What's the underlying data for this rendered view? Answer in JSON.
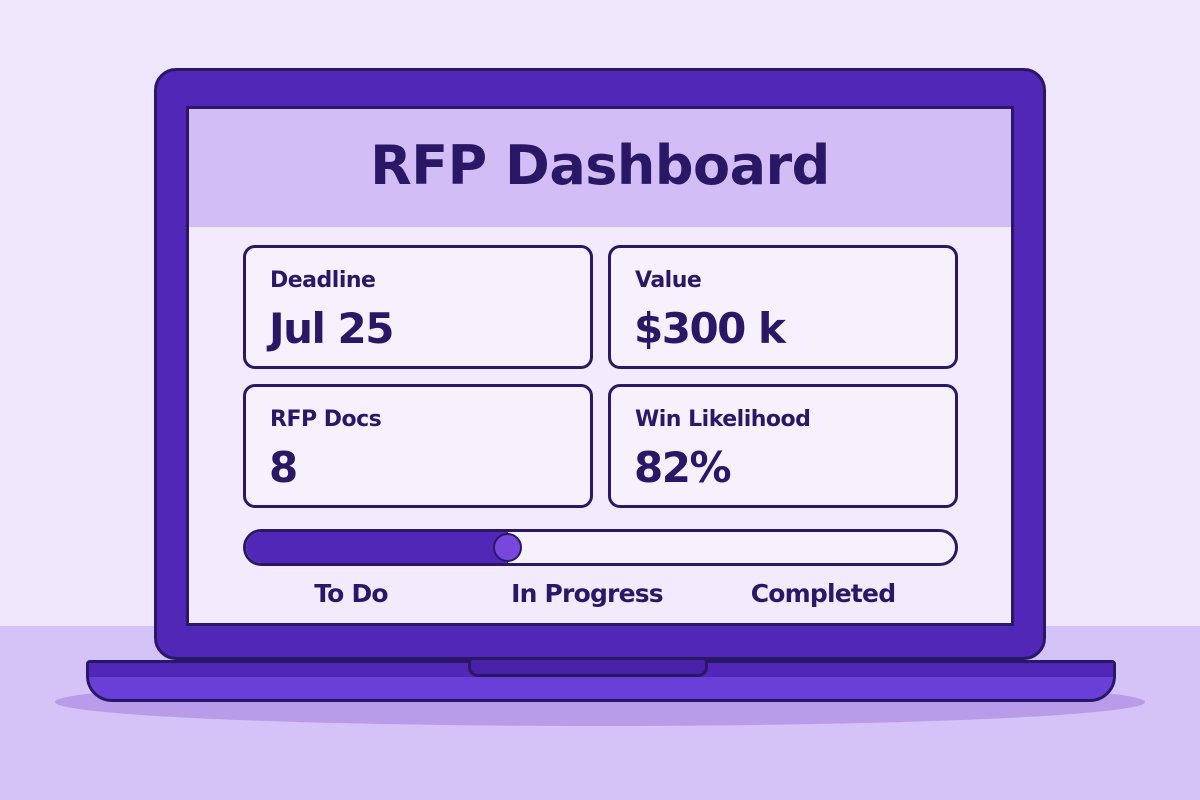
{
  "dashboard": {
    "title": "RFP Dashboard",
    "cards": [
      {
        "label": "Deadline",
        "value": "Jul 25"
      },
      {
        "label": "Value",
        "value": "$300 k"
      },
      {
        "label": "RFP Docs",
        "value": "8"
      },
      {
        "label": "Win Likelihood",
        "value": "82%"
      }
    ],
    "progress": {
      "fraction": 0.37,
      "stages": [
        "To Do",
        "In Progress",
        "Completed"
      ]
    }
  },
  "colors": {
    "background": "#efe6fb",
    "laptop_frame": "#5127b8",
    "outline": "#2a1866",
    "header": "#d3bdf6",
    "screen": "#f3ebfc",
    "accent": "#7847de"
  }
}
